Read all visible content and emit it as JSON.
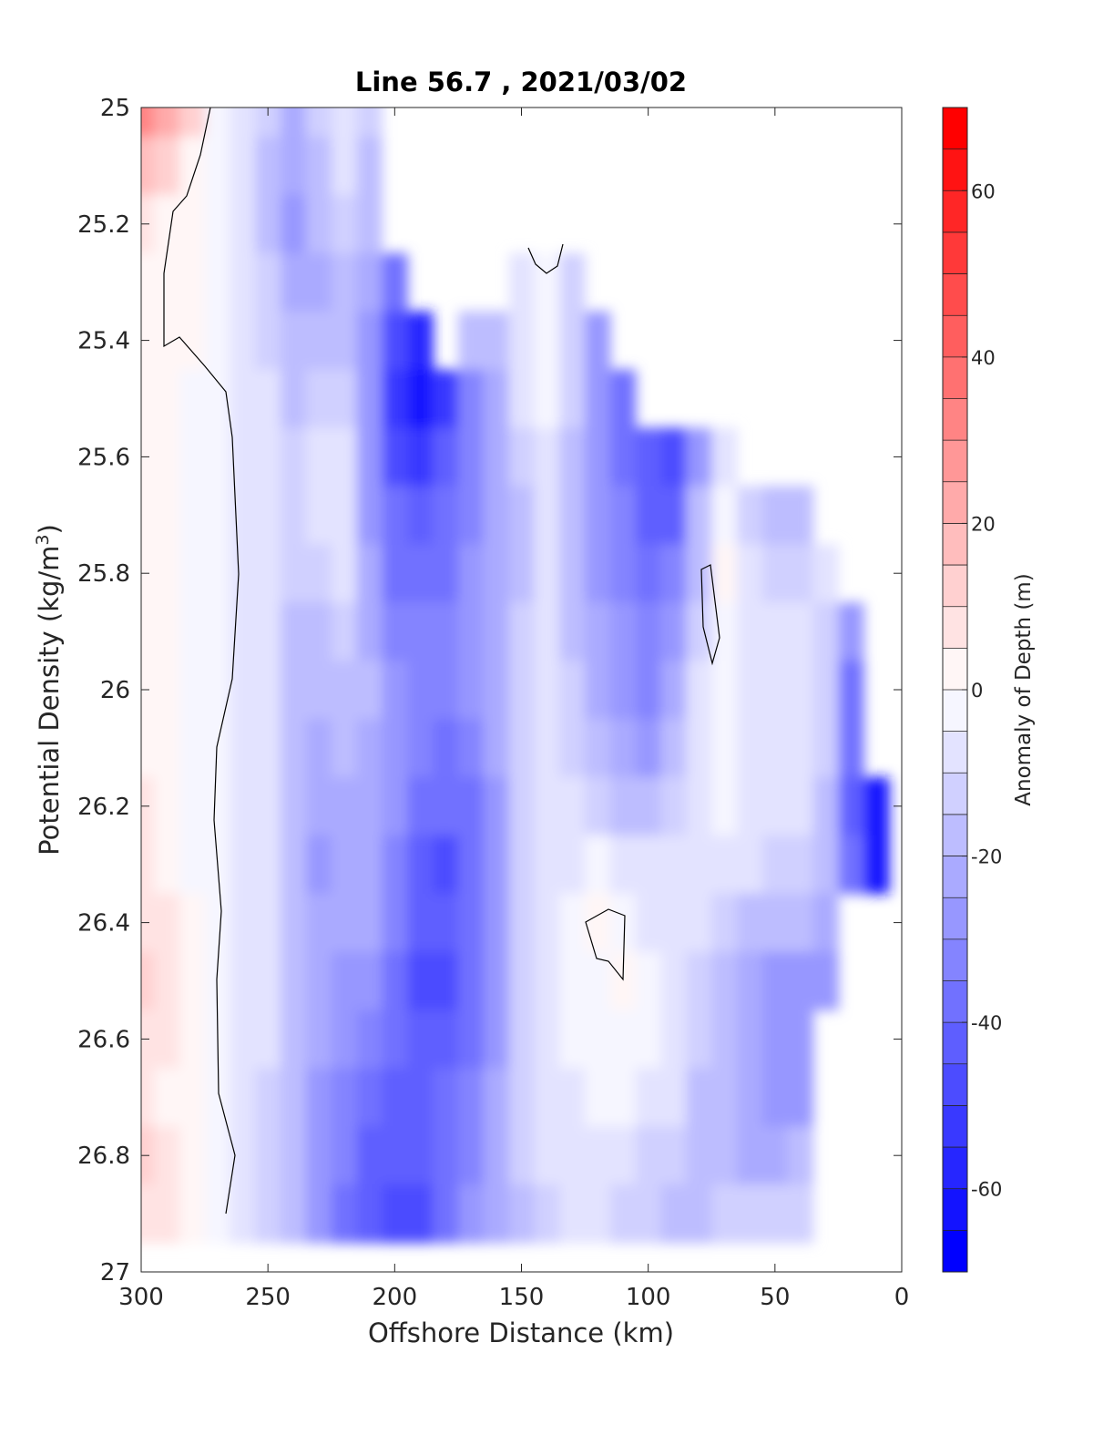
{
  "chart_data": {
    "type": "heatmap",
    "title": "Line 56.7 , 2021/03/02",
    "xlabel": "Offshore Distance (km)",
    "ylabel": "Potential Density (kg/m^3)",
    "ylabel_main": "Potential Density (kg/m",
    "ylabel_sup": "3",
    "ylabel_close": ")",
    "xlim": [
      300,
      0
    ],
    "x_reversed": true,
    "ylim": [
      25,
      27
    ],
    "y_reversed": true,
    "xticks": [
      300,
      250,
      200,
      150,
      100,
      50,
      0
    ],
    "xtick_labels": [
      "300",
      "250",
      "200",
      "150",
      "100",
      "50",
      "0"
    ],
    "yticks": [
      25,
      25.2,
      25.4,
      25.6,
      25.8,
      26,
      26.2,
      26.4,
      26.6,
      26.8,
      27
    ],
    "ytick_labels": [
      "25",
      "25.2",
      "25.4",
      "25.6",
      "25.8",
      "26",
      "26.2",
      "26.4",
      "26.6",
      "26.8",
      "27"
    ],
    "colorbar": {
      "label": "Anomaly of Depth (m)",
      "range": [
        -70,
        70
      ],
      "step": 5,
      "ticks": [
        -60,
        -40,
        -20,
        0,
        20,
        40,
        60
      ],
      "tick_labels": [
        "-60",
        "-40",
        "-20",
        "0",
        "20",
        "40",
        "60"
      ],
      "colormap": "blue-white-red"
    },
    "zero_contour": true,
    "y_grid": [
      25,
      25.1,
      25.2,
      25.3,
      25.4,
      25.5,
      25.6,
      25.7,
      25.8,
      25.9,
      26,
      26.1,
      26.2,
      26.3,
      26.4,
      26.5,
      26.6,
      26.7,
      26.8,
      26.9
    ],
    "x_grid": [
      300,
      290,
      280,
      270,
      260,
      250,
      240,
      230,
      220,
      210,
      200,
      190,
      180,
      170,
      160,
      150,
      140,
      130,
      120,
      110,
      100,
      90,
      80,
      70,
      60,
      50,
      40,
      30,
      20,
      10
    ],
    "z_rows": [
      [
        30,
        20,
        10,
        -2,
        -6,
        -14,
        -22,
        -14,
        -8,
        -14,
        null,
        null,
        null,
        null,
        null,
        null,
        null,
        null,
        null,
        null,
        null,
        null,
        null,
        null,
        null,
        null,
        null,
        null,
        null,
        null
      ],
      [
        15,
        10,
        3,
        -3,
        -8,
        -16,
        -24,
        -16,
        -10,
        -16,
        null,
        null,
        null,
        null,
        null,
        null,
        null,
        null,
        null,
        null,
        null,
        null,
        null,
        null,
        null,
        null,
        null,
        null,
        null,
        null
      ],
      [
        5,
        3,
        1,
        -3,
        -9,
        -16,
        -26,
        -20,
        -14,
        -18,
        null,
        null,
        null,
        null,
        null,
        null,
        null,
        null,
        null,
        null,
        null,
        null,
        null,
        null,
        null,
        null,
        null,
        null,
        null,
        null
      ],
      [
        3,
        2,
        1,
        -4,
        -10,
        -14,
        -22,
        -22,
        -18,
        -24,
        -40,
        null,
        null,
        null,
        null,
        -8,
        -3,
        -12,
        null,
        null,
        null,
        null,
        null,
        null,
        null,
        null,
        null,
        null,
        null,
        null
      ],
      [
        2,
        1,
        0,
        -3,
        -8,
        -12,
        -18,
        -20,
        -18,
        -26,
        -50,
        -56,
        null,
        -18,
        -20,
        -8,
        -3,
        -14,
        -28,
        null,
        null,
        null,
        null,
        null,
        null,
        null,
        null,
        null,
        null,
        null
      ],
      [
        1,
        0,
        -1,
        -2,
        -6,
        -10,
        -16,
        -15,
        -14,
        -28,
        -52,
        -62,
        -55,
        -32,
        -22,
        -10,
        -3,
        -14,
        -30,
        -40,
        null,
        null,
        null,
        null,
        null,
        null,
        null,
        null,
        null,
        null
      ],
      [
        1,
        0,
        -1,
        -2,
        -6,
        -10,
        -14,
        -10,
        -8,
        -28,
        -46,
        -54,
        -45,
        -32,
        -22,
        -14,
        -6,
        -16,
        -28,
        -36,
        -42,
        -46,
        -30,
        -8,
        null,
        null,
        null,
        null,
        null,
        null
      ],
      [
        1,
        0,
        -1,
        -2,
        -6,
        -10,
        -14,
        -8,
        -6,
        -26,
        -40,
        -44,
        -40,
        -32,
        -24,
        -16,
        -10,
        -18,
        -26,
        -34,
        -42,
        -42,
        -20,
        -5,
        -14,
        -18,
        -16,
        null,
        null,
        null
      ],
      [
        1,
        0,
        -1,
        -2,
        -6,
        -10,
        -14,
        -12,
        -10,
        -24,
        -36,
        -38,
        -36,
        -30,
        -24,
        -16,
        -10,
        -18,
        -26,
        -32,
        -38,
        -34,
        -16,
        1,
        -10,
        -14,
        -12,
        -10,
        null,
        null
      ],
      [
        2,
        0,
        -1,
        -2,
        -6,
        -10,
        -16,
        -18,
        -14,
        -22,
        -32,
        -34,
        -34,
        -28,
        -22,
        -14,
        -8,
        -16,
        -24,
        -30,
        -34,
        -28,
        -12,
        -2,
        -8,
        -10,
        -10,
        -12,
        -30,
        null
      ],
      [
        3,
        1,
        -1,
        -2,
        -6,
        -10,
        -16,
        -20,
        -18,
        -20,
        -28,
        -32,
        -34,
        -28,
        -22,
        -14,
        -8,
        -14,
        -22,
        -28,
        -32,
        -24,
        -10,
        -3,
        -6,
        -8,
        -8,
        -14,
        -36,
        null
      ],
      [
        4,
        2,
        -1,
        -2,
        -6,
        -10,
        -16,
        -22,
        -20,
        -22,
        -28,
        -34,
        -36,
        -32,
        -24,
        -14,
        -8,
        -12,
        -18,
        -24,
        -28,
        -20,
        -8,
        -2,
        -6,
        -8,
        -8,
        -14,
        -40,
        null
      ],
      [
        5,
        3,
        -1,
        -2,
        -6,
        -10,
        -16,
        -22,
        -22,
        -22,
        -30,
        -38,
        -40,
        -36,
        -26,
        -14,
        -8,
        -10,
        -12,
        -16,
        -20,
        -14,
        -6,
        -2,
        -6,
        -8,
        -8,
        -16,
        -44,
        -62
      ],
      [
        6,
        4,
        -1,
        -2,
        -6,
        -10,
        -16,
        -26,
        -24,
        -24,
        -32,
        -42,
        -46,
        -38,
        -26,
        -14,
        -6,
        -6,
        -4,
        -6,
        -10,
        -10,
        -6,
        -8,
        -10,
        -12,
        -12,
        -18,
        -40,
        -64
      ],
      [
        8,
        6,
        2,
        -1,
        -6,
        -10,
        -18,
        -24,
        -22,
        -24,
        -34,
        -44,
        -44,
        -38,
        -26,
        -14,
        -6,
        -3,
        1,
        -2,
        -6,
        -8,
        -10,
        -14,
        -18,
        -20,
        -20,
        -22,
        null,
        null
      ],
      [
        10,
        8,
        3,
        -1,
        -6,
        -10,
        -18,
        -24,
        -26,
        -26,
        -36,
        -46,
        -46,
        -40,
        -26,
        -14,
        -6,
        -3,
        -2,
        1,
        -4,
        -8,
        -12,
        -16,
        -22,
        -26,
        -26,
        -28,
        null,
        null
      ],
      [
        9,
        6,
        2,
        -1,
        -6,
        -10,
        -18,
        -24,
        -30,
        -32,
        -38,
        -44,
        -44,
        -38,
        -26,
        -14,
        -8,
        -4,
        -2,
        -2,
        -4,
        -6,
        -12,
        -18,
        -24,
        -28,
        -28,
        null,
        null,
        null
      ],
      [
        7,
        4,
        1,
        -1,
        -6,
        -12,
        -20,
        -26,
        -34,
        -38,
        -42,
        -42,
        -40,
        -34,
        -24,
        -14,
        -8,
        -6,
        -4,
        -3,
        -6,
        -10,
        -16,
        -20,
        -24,
        -26,
        -26,
        null,
        null,
        null
      ],
      [
        12,
        8,
        3,
        -1,
        -6,
        -12,
        -20,
        -26,
        -34,
        -42,
        -44,
        -44,
        -40,
        -32,
        -22,
        -14,
        -10,
        -10,
        -8,
        -8,
        -12,
        -14,
        -18,
        -20,
        -22,
        -22,
        -20,
        null,
        null,
        null
      ],
      [
        8,
        6,
        2,
        -1,
        -6,
        -12,
        -20,
        -28,
        -36,
        -42,
        -46,
        -46,
        -40,
        -30,
        -22,
        -16,
        -12,
        -10,
        -10,
        -12,
        -14,
        -16,
        -16,
        -14,
        -14,
        -14,
        -14,
        null,
        null,
        null
      ]
    ]
  }
}
